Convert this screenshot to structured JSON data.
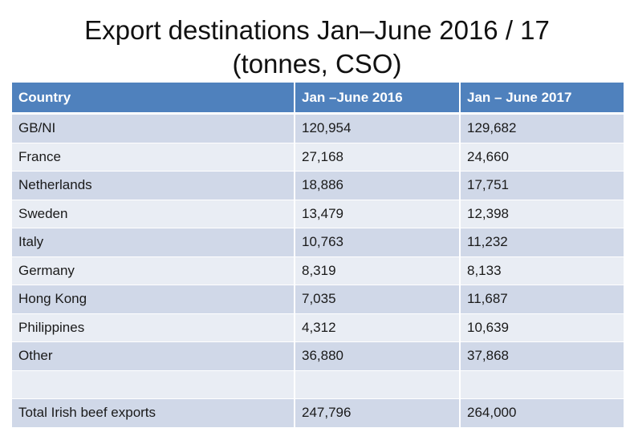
{
  "title": {
    "line1": "Export destinations Jan–June 2016 / 17",
    "line2": "(tonnes, CSO)"
  },
  "table": {
    "headers": [
      "Country",
      "Jan –June 2016",
      "Jan – June 2017"
    ],
    "rows": [
      [
        "GB/NI",
        "120,954",
        "129,682"
      ],
      [
        "France",
        "27,168",
        "24,660"
      ],
      [
        "Netherlands",
        "18,886",
        "17,751"
      ],
      [
        "Sweden",
        "13,479",
        "12,398"
      ],
      [
        "Italy",
        "10,763",
        "11,232"
      ],
      [
        "Germany",
        "8,319",
        "8,133"
      ],
      [
        "Hong Kong",
        "7,035",
        "11,687"
      ],
      [
        "Philippines",
        "4,312",
        "10,639"
      ],
      [
        "Other",
        "36,880",
        "37,868"
      ],
      [
        "",
        "",
        ""
      ],
      [
        "Total Irish beef exports",
        "247,796",
        "264,000"
      ]
    ]
  },
  "colors": {
    "header": "#4f81bd",
    "row_odd": "#d0d8e8",
    "row_even": "#e9edf4"
  }
}
